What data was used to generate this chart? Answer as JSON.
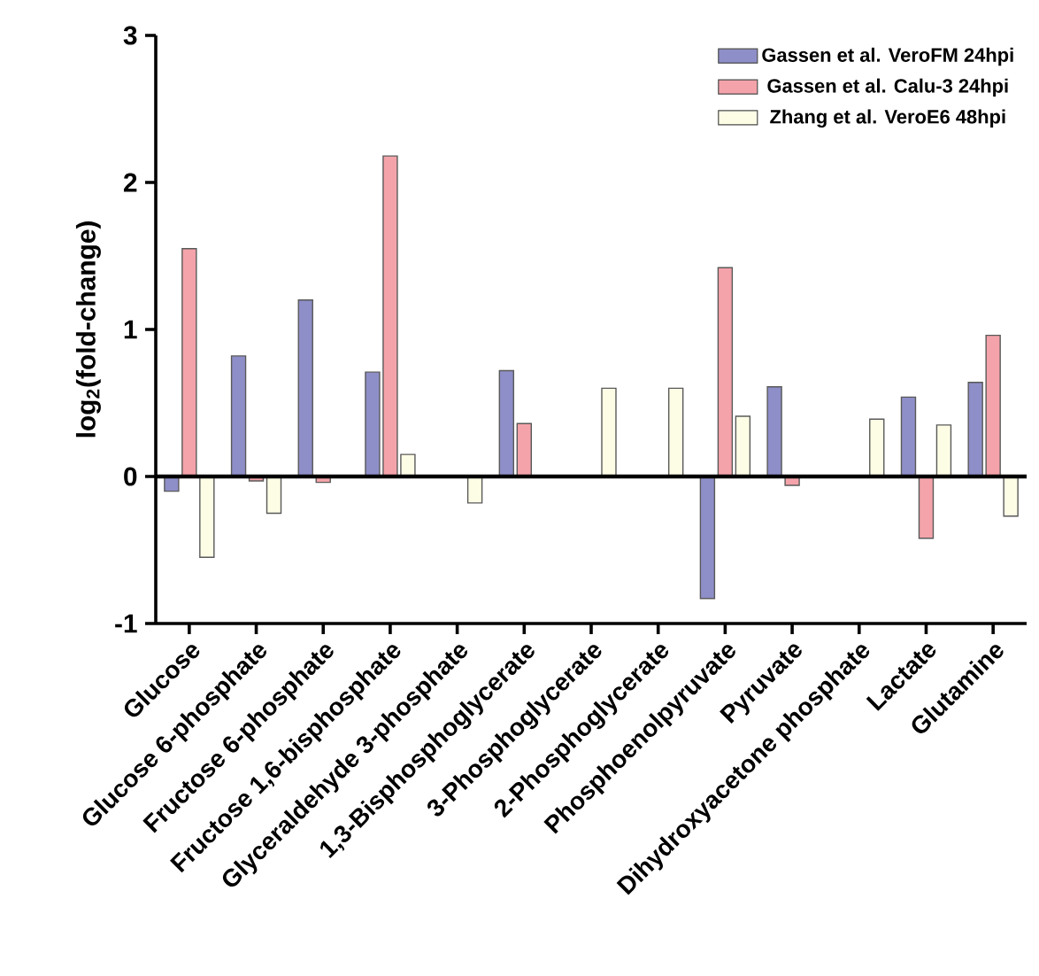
{
  "chart_data": {
    "type": "bar",
    "ylabel": "log$_{2}$(fold-change)",
    "categories": [
      "Glucose",
      "Glucose 6-phosphate",
      "Fructose 6-phosphate",
      "Fructose 1,6-bisphosphate",
      "Glyceraldehyde 3-phosphate",
      "1,3-Bisphosphoglycerate",
      "3-Phosphoglycerate",
      "2-Phosphoglycerate",
      "Phosphoenolpyruvate",
      "Pyruvate",
      "Dihydroxyacetone phosphate",
      "Lactate",
      "Glutamine"
    ],
    "series": [
      {
        "name": "Gassen et al. VeroFM 24hpi",
        "color": "#8e8ec8",
        "values": [
          -0.1,
          0.82,
          1.2,
          0.71,
          null,
          0.72,
          null,
          null,
          -0.83,
          0.61,
          null,
          0.54,
          0.64
        ]
      },
      {
        "name": "Gassen et al. Calu-3 24hpi",
        "color": "#f4a3aa",
        "values": [
          1.55,
          -0.03,
          -0.04,
          2.18,
          null,
          0.36,
          null,
          null,
          1.42,
          -0.06,
          null,
          -0.42,
          0.96
        ]
      },
      {
        "name": "Zhang et al.   VeroE6 48hpi",
        "color": "#fdfde6",
        "values": [
          -0.55,
          -0.25,
          null,
          0.15,
          -0.18,
          null,
          0.6,
          0.6,
          0.41,
          null,
          0.39,
          0.35,
          -0.27
        ]
      }
    ],
    "ylim": [
      -1,
      3
    ],
    "yticks": [
      -1,
      0,
      1,
      2,
      3
    ],
    "ref_lines": [
      {
        "axis": "y",
        "value": 0
      }
    ],
    "grid": false,
    "legend": "top right"
  }
}
